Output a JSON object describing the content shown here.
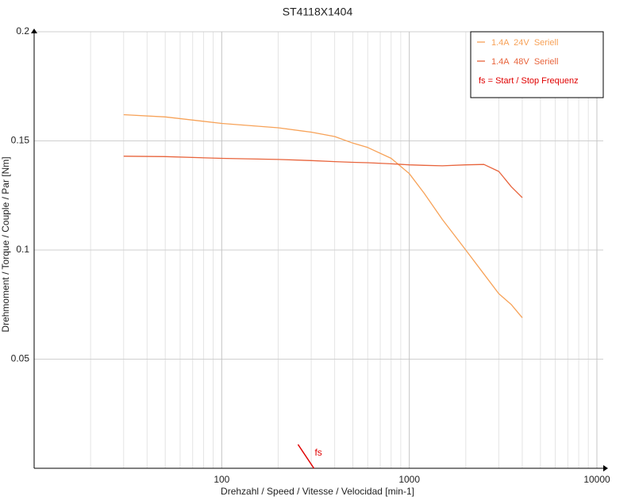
{
  "chart_data": {
    "type": "line",
    "title": "ST4118X1404",
    "xlabel": "Drehzahl / Speed / Vitesse / Velocidad [min-1]",
    "ylabel": "Drehmoment / Torque / Couple / Par [Nm]",
    "xscale": "log",
    "xlim": [
      10,
      10000
    ],
    "ylim": [
      0,
      0.2
    ],
    "xticks": [
      100,
      1000,
      10000
    ],
    "yticks": [
      0.05,
      0.1,
      0.15,
      0.2
    ],
    "grid": true,
    "legend": "upper right",
    "x": [
      30,
      50,
      100,
      200,
      300,
      400,
      500,
      600,
      800,
      1000,
      1200,
      1500,
      2000,
      2500,
      3000,
      3500,
      4000
    ],
    "series": [
      {
        "name": "1.4A  24V  Seriell",
        "color": "#f7a258",
        "values": [
          0.162,
          0.161,
          0.158,
          0.156,
          0.154,
          0.152,
          0.149,
          0.147,
          0.142,
          0.135,
          0.126,
          0.114,
          0.1,
          0.089,
          0.08,
          0.075,
          0.069
        ]
      },
      {
        "name": "1.4A  48V  Seriell",
        "color": "#e8643c",
        "values": [
          0.143,
          0.1428,
          0.142,
          0.1415,
          0.141,
          0.1405,
          0.1402,
          0.14,
          0.1395,
          0.139,
          0.1388,
          0.1386,
          0.139,
          0.1392,
          0.136,
          0.129,
          0.124
        ]
      }
    ],
    "fs_note": {
      "text": "fs = Start / Stop Frequenz",
      "color": "#e00000"
    },
    "fs_marker": {
      "label": "fs",
      "x": 310,
      "color": "#e00000"
    }
  }
}
